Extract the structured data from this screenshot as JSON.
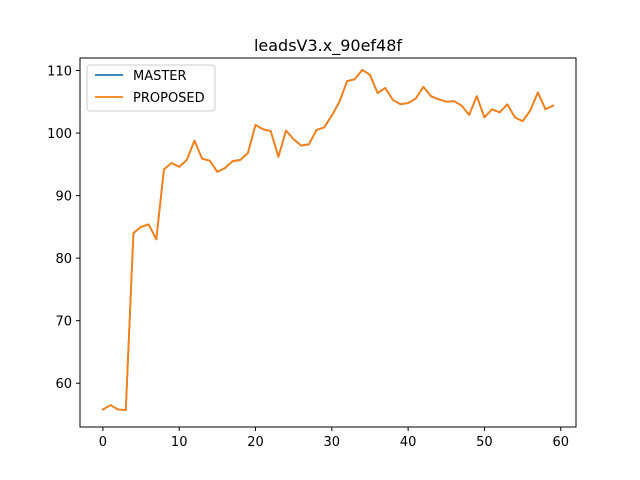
{
  "chart_data": {
    "type": "line",
    "title": "leadsV3.x_90ef48f",
    "xlabel": "",
    "ylabel": "",
    "xlim": [
      -3.0,
      62.0
    ],
    "ylim": [
      53.0,
      112.0
    ],
    "xticks": [
      0,
      10,
      20,
      30,
      40,
      50,
      60
    ],
    "yticks": [
      60,
      70,
      80,
      90,
      100,
      110
    ],
    "grid": false,
    "legend": "top-left",
    "x": [
      0,
      1,
      2,
      3,
      4,
      5,
      6,
      7,
      8,
      9,
      10,
      11,
      12,
      13,
      14,
      15,
      16,
      17,
      18,
      19,
      20,
      21,
      22,
      23,
      24,
      25,
      26,
      27,
      28,
      29,
      30,
      31,
      32,
      33,
      34,
      35,
      36,
      37,
      38,
      39,
      40,
      41,
      42,
      43,
      44,
      45,
      46,
      47,
      48,
      49,
      50,
      51,
      52,
      53,
      54,
      55,
      56,
      57,
      58,
      59
    ],
    "series": [
      {
        "name": "MASTER",
        "color": "#1f77b4",
        "values": [
          55.8,
          56.5,
          55.8,
          55.7,
          84.0,
          85.0,
          85.4,
          83.0,
          94.2,
          95.2,
          94.6,
          95.7,
          98.8,
          95.9,
          95.6,
          93.8,
          94.4,
          95.5,
          95.7,
          96.8,
          101.3,
          100.6,
          100.3,
          96.2,
          100.4,
          99.0,
          98.0,
          98.2,
          100.5,
          100.9,
          102.8,
          105.0,
          108.3,
          108.6,
          110.1,
          109.3,
          106.4,
          107.2,
          105.3,
          104.6,
          104.8,
          105.5,
          107.4,
          105.9,
          105.4,
          105.0,
          105.1,
          104.4,
          102.9,
          105.9,
          102.5,
          103.8,
          103.3,
          104.6,
          102.5,
          101.9,
          103.6,
          106.5,
          103.8,
          104.4
        ]
      },
      {
        "name": "PROPOSED",
        "color": "#ff7f0e",
        "values": [
          55.8,
          56.5,
          55.8,
          55.7,
          84.0,
          85.0,
          85.4,
          83.0,
          94.2,
          95.2,
          94.6,
          95.7,
          98.8,
          95.9,
          95.6,
          93.8,
          94.4,
          95.5,
          95.7,
          96.8,
          101.3,
          100.6,
          100.3,
          96.2,
          100.4,
          99.0,
          98.0,
          98.2,
          100.5,
          100.9,
          102.8,
          105.0,
          108.3,
          108.6,
          110.1,
          109.3,
          106.4,
          107.2,
          105.3,
          104.6,
          104.8,
          105.5,
          107.4,
          105.9,
          105.4,
          105.0,
          105.1,
          104.4,
          102.9,
          105.9,
          102.5,
          103.8,
          103.3,
          104.6,
          102.5,
          101.9,
          103.6,
          106.5,
          103.8,
          104.4
        ]
      }
    ]
  }
}
